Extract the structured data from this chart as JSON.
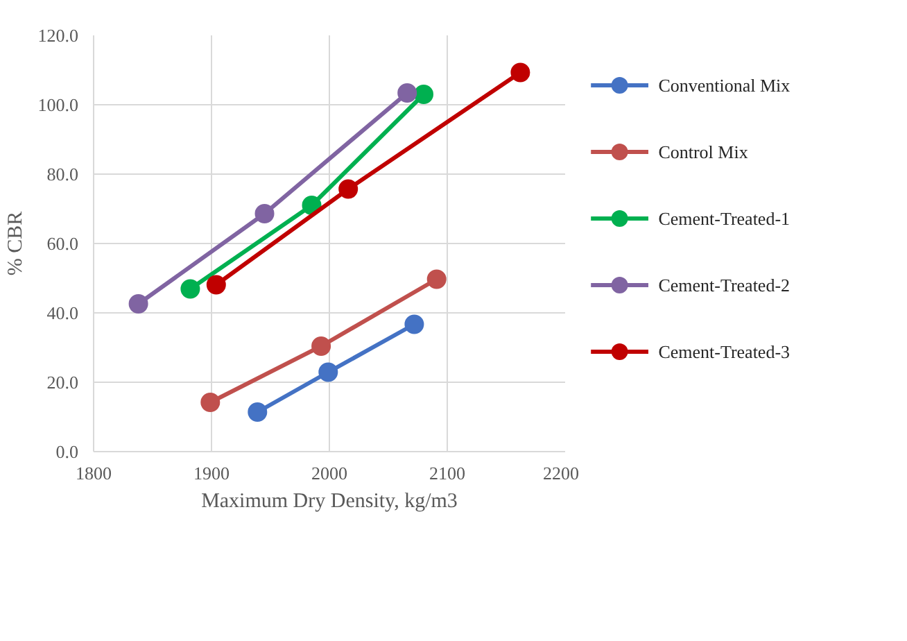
{
  "chart_data": {
    "type": "line",
    "xlabel": "Maximum Dry Density, kg/m3",
    "ylabel": "% CBR",
    "xlim": [
      1800,
      2200
    ],
    "xticks": [
      1800,
      1900,
      2000,
      2100,
      2200
    ],
    "ylim": [
      0,
      120
    ],
    "yticks": [
      {
        "value": 0,
        "label": "0.0"
      },
      {
        "value": 20,
        "label": "20.0"
      },
      {
        "value": 40,
        "label": "40.0"
      },
      {
        "value": 60,
        "label": "60.0"
      },
      {
        "value": 80,
        "label": "80.0"
      },
      {
        "value": 100,
        "label": "100.0"
      },
      {
        "value": 120,
        "label": "120.0"
      }
    ],
    "grid": true,
    "legend": "right",
    "marker": "circle",
    "line_style": "solid",
    "series": [
      {
        "name": "Conventional Mix",
        "color": "#4472c4",
        "x": [
          1939,
          1999,
          2072
        ],
        "values": [
          11.4,
          22.9,
          36.7
        ]
      },
      {
        "name": "Control Mix",
        "color": "#c0504d",
        "x": [
          1899,
          1993,
          2091
        ],
        "values": [
          14.2,
          30.4,
          49.7
        ]
      },
      {
        "name": "Cement-Treated-1",
        "color": "#00b050",
        "x": [
          1882,
          1985,
          2080
        ],
        "values": [
          46.9,
          71.0,
          103.0
        ]
      },
      {
        "name": "Cement-Treated-2",
        "color": "#8064a2",
        "x": [
          1838,
          1945,
          2066
        ],
        "values": [
          42.6,
          68.6,
          103.4
        ]
      },
      {
        "name": "Cement-Treated-3",
        "color": "#c00000",
        "x": [
          1904,
          2016,
          2162
        ],
        "values": [
          48.1,
          75.7,
          109.3
        ]
      }
    ]
  }
}
